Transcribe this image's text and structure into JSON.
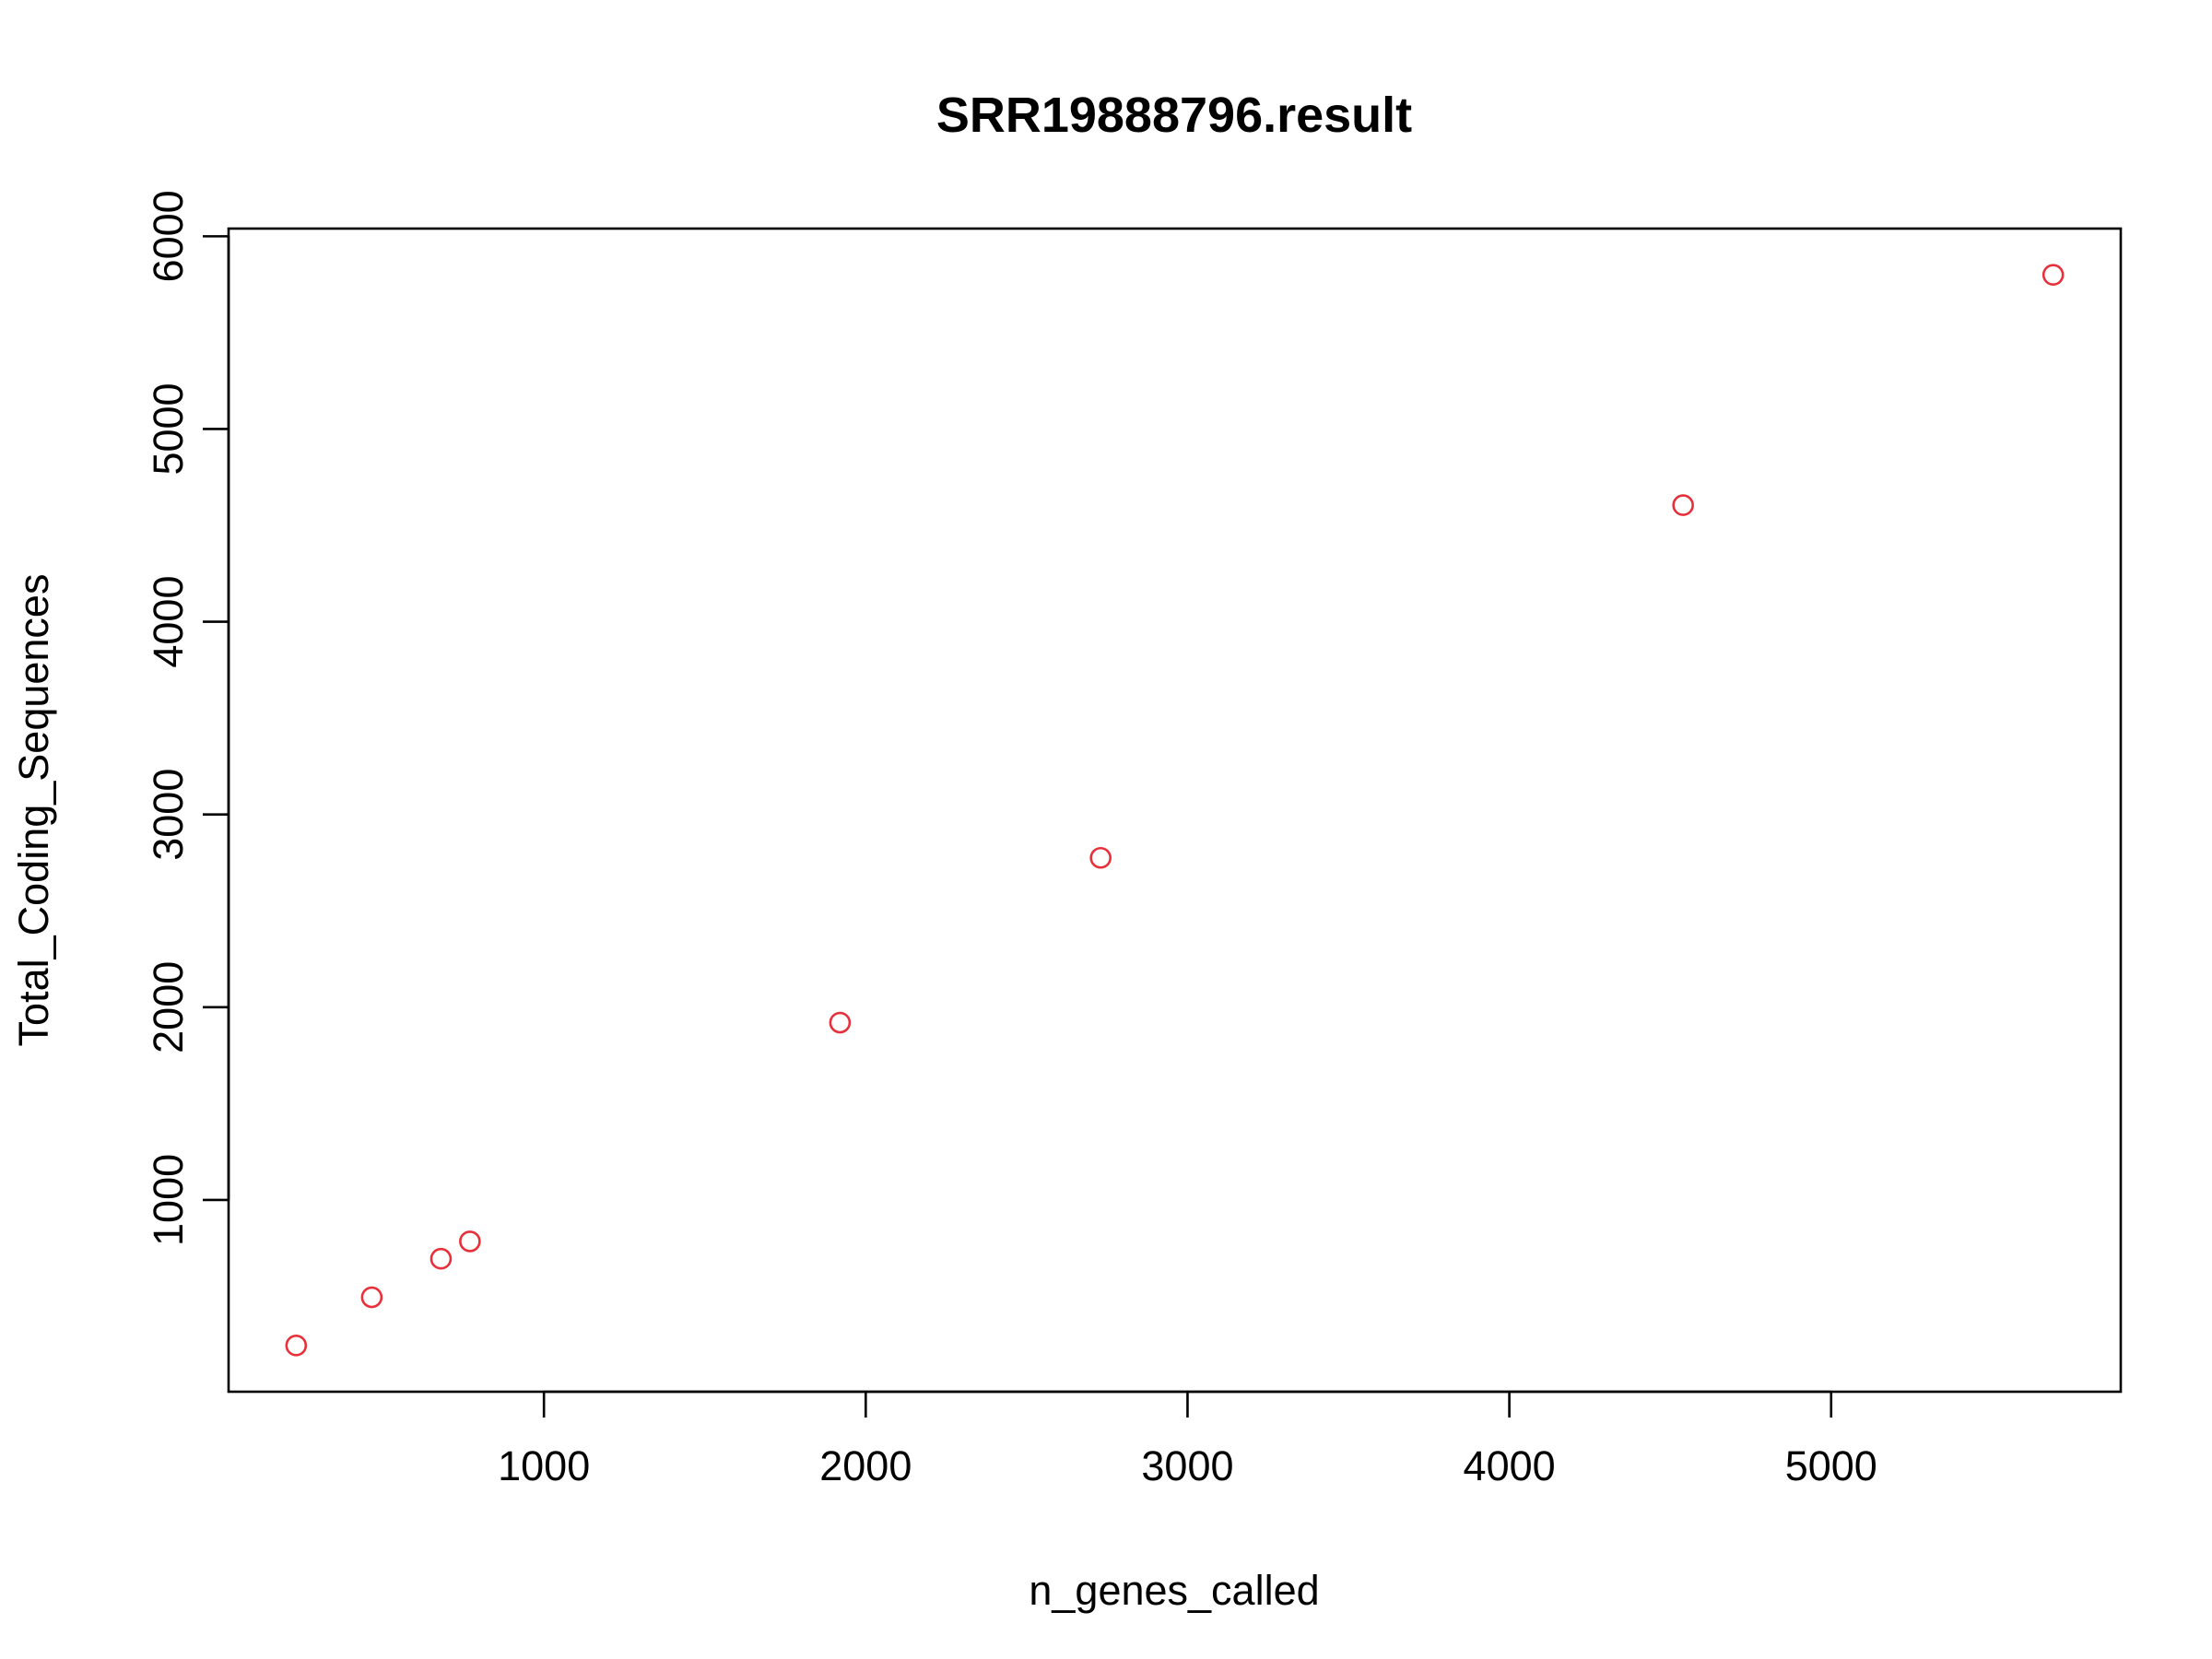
{
  "chart_data": {
    "type": "scatter",
    "title": "SRR19888796.result",
    "xlabel": "n_genes_called",
    "ylabel": "Total_Coding_Sequences",
    "xlim": [
      20,
      5900
    ],
    "ylim": [
      5,
      6040
    ],
    "x_ticks": [
      1000,
      2000,
      3000,
      4000,
      5000
    ],
    "y_ticks": [
      1000,
      2000,
      3000,
      4000,
      5000,
      6000
    ],
    "point_color": "#e8303a",
    "grid": false,
    "legend": "none",
    "points": [
      {
        "x": 230,
        "y": 245
      },
      {
        "x": 465,
        "y": 495
      },
      {
        "x": 680,
        "y": 695
      },
      {
        "x": 770,
        "y": 785
      },
      {
        "x": 1920,
        "y": 1920
      },
      {
        "x": 2730,
        "y": 2775
      },
      {
        "x": 4540,
        "y": 4605
      },
      {
        "x": 5690,
        "y": 5800
      }
    ]
  }
}
